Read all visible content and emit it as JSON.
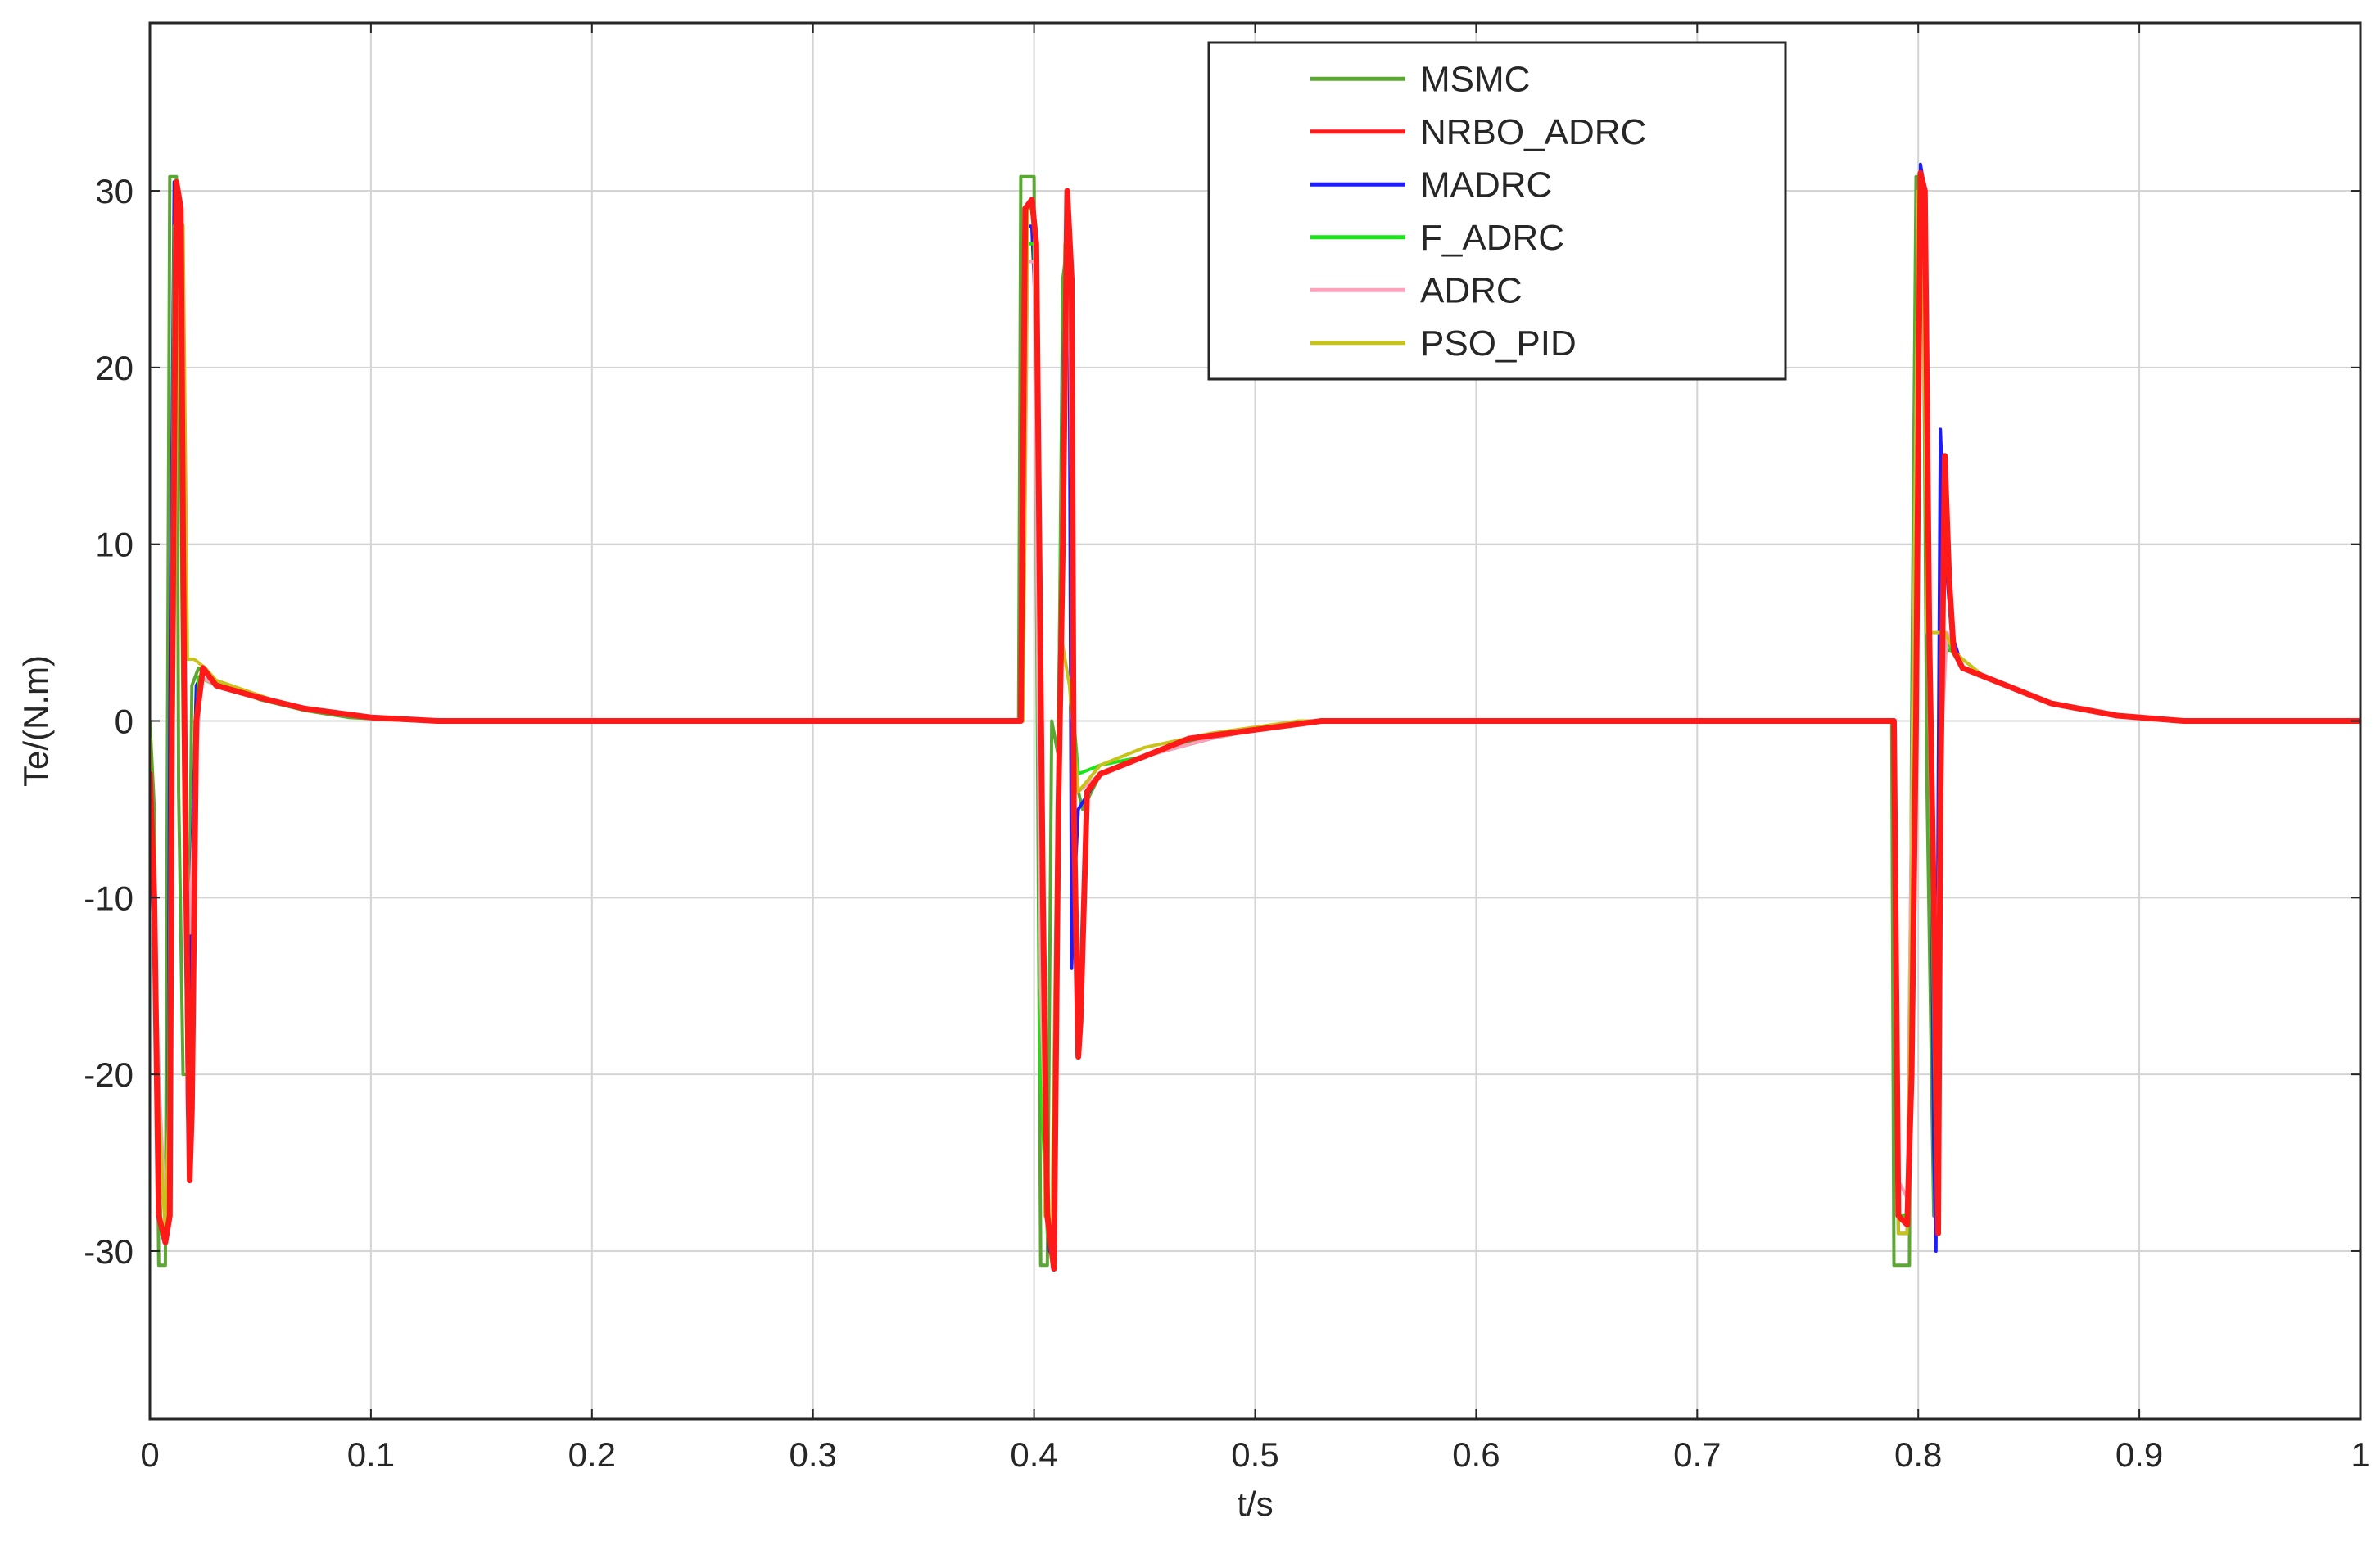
{
  "chart_data": {
    "type": "line",
    "title": "",
    "xlabel": "t/s",
    "ylabel": "Te/(N.m)",
    "xlim": [
      0,
      1
    ],
    "ylim": [
      -39.5,
      39.5
    ],
    "x_ticks": [
      0,
      0.1,
      0.2,
      0.3,
      0.4,
      0.5,
      0.6,
      0.7,
      0.8,
      0.9,
      1
    ],
    "x_tick_labels": [
      "0",
      "0.1",
      "0.2",
      "0.3",
      "0.4",
      "0.5",
      "0.6",
      "0.7",
      "0.8",
      "0.9",
      "1"
    ],
    "y_ticks": [
      -30,
      -20,
      -10,
      0,
      10,
      20,
      30
    ],
    "y_tick_labels": [
      "-30",
      "-20",
      "-10",
      "0",
      "10",
      "20",
      "30"
    ],
    "grid": true,
    "legend_position": "top-center",
    "series": [
      {
        "name": "MSMC",
        "color": "#5aa832",
        "points": [
          [
            0,
            0
          ],
          [
            0.002,
            -5
          ],
          [
            0.004,
            -30.8
          ],
          [
            0.007,
            -30.8
          ],
          [
            0.008,
            0
          ],
          [
            0.009,
            30.8
          ],
          [
            0.012,
            30.8
          ],
          [
            0.013,
            -4
          ],
          [
            0.015,
            -20
          ],
          [
            0.017,
            -20
          ],
          [
            0.019,
            2
          ],
          [
            0.022,
            3
          ],
          [
            0.03,
            2.2
          ],
          [
            0.05,
            1.2
          ],
          [
            0.07,
            0.6
          ],
          [
            0.09,
            0.2
          ],
          [
            0.12,
            0
          ],
          [
            0.393,
            0
          ],
          [
            0.394,
            30.8
          ],
          [
            0.4,
            30.8
          ],
          [
            0.401,
            10
          ],
          [
            0.403,
            -30.8
          ],
          [
            0.406,
            -30.8
          ],
          [
            0.408,
            0
          ],
          [
            0.411,
            -2
          ],
          [
            0.413,
            25
          ],
          [
            0.416,
            28
          ],
          [
            0.418,
            -3
          ],
          [
            0.422,
            -5
          ],
          [
            0.43,
            -3
          ],
          [
            0.45,
            -2
          ],
          [
            0.47,
            -1.2
          ],
          [
            0.5,
            -0.4
          ],
          [
            0.53,
            0
          ],
          [
            0.788,
            0
          ],
          [
            0.789,
            -30.8
          ],
          [
            0.796,
            -30.8
          ],
          [
            0.797,
            0
          ],
          [
            0.799,
            30.8
          ],
          [
            0.802,
            30.8
          ],
          [
            0.804,
            -4
          ],
          [
            0.807,
            -28
          ],
          [
            0.809,
            -26
          ],
          [
            0.811,
            4
          ],
          [
            0.815,
            4
          ],
          [
            0.82,
            3
          ],
          [
            0.83,
            2.5
          ],
          [
            0.86,
            1
          ],
          [
            0.89,
            0.3
          ],
          [
            0.92,
            0
          ],
          [
            1,
            0
          ]
        ]
      },
      {
        "name": "NRBO_ADRC",
        "color": "#ff1a1a",
        "points": [
          [
            0,
            -3
          ],
          [
            0.002,
            -10
          ],
          [
            0.004,
            -28
          ],
          [
            0.007,
            -29.5
          ],
          [
            0.009,
            -28
          ],
          [
            0.01,
            0
          ],
          [
            0.012,
            30.5
          ],
          [
            0.014,
            29
          ],
          [
            0.015,
            10
          ],
          [
            0.016,
            -5
          ],
          [
            0.018,
            -26
          ],
          [
            0.019,
            -22
          ],
          [
            0.021,
            0
          ],
          [
            0.024,
            3
          ],
          [
            0.03,
            2
          ],
          [
            0.05,
            1.3
          ],
          [
            0.07,
            0.7
          ],
          [
            0.1,
            0.2
          ],
          [
            0.13,
            0
          ],
          [
            0.394,
            0
          ],
          [
            0.396,
            29
          ],
          [
            0.399,
            29.5
          ],
          [
            0.401,
            27
          ],
          [
            0.404,
            -10
          ],
          [
            0.406,
            -28
          ],
          [
            0.409,
            -31
          ],
          [
            0.411,
            -5
          ],
          [
            0.413,
            10
          ],
          [
            0.415,
            30
          ],
          [
            0.417,
            25
          ],
          [
            0.418,
            -5
          ],
          [
            0.42,
            -19
          ],
          [
            0.421,
            -17
          ],
          [
            0.424,
            -4
          ],
          [
            0.43,
            -3
          ],
          [
            0.45,
            -2
          ],
          [
            0.47,
            -1
          ],
          [
            0.5,
            -0.5
          ],
          [
            0.53,
            0
          ],
          [
            0.789,
            0
          ],
          [
            0.791,
            -28
          ],
          [
            0.795,
            -28.5
          ],
          [
            0.797,
            -20
          ],
          [
            0.799,
            0
          ],
          [
            0.801,
            31
          ],
          [
            0.803,
            30
          ],
          [
            0.805,
            5
          ],
          [
            0.807,
            -10
          ],
          [
            0.809,
            -29
          ],
          [
            0.81,
            -5
          ],
          [
            0.812,
            15
          ],
          [
            0.814,
            8
          ],
          [
            0.816,
            4
          ],
          [
            0.82,
            3
          ],
          [
            0.83,
            2.5
          ],
          [
            0.86,
            1
          ],
          [
            0.89,
            0.3
          ],
          [
            0.92,
            0
          ],
          [
            1,
            0
          ]
        ]
      },
      {
        "name": "MADRC",
        "color": "#1c1cff",
        "points": [
          [
            0,
            -2
          ],
          [
            0.003,
            -20
          ],
          [
            0.005,
            -29
          ],
          [
            0.008,
            -29
          ],
          [
            0.009,
            0
          ],
          [
            0.011,
            30.5
          ],
          [
            0.013,
            29
          ],
          [
            0.015,
            5
          ],
          [
            0.017,
            -22
          ],
          [
            0.018,
            -25
          ],
          [
            0.019,
            -8
          ],
          [
            0.021,
            2
          ],
          [
            0.025,
            3
          ],
          [
            0.03,
            2
          ],
          [
            0.06,
            1
          ],
          [
            0.09,
            0.3
          ],
          [
            0.12,
            0
          ],
          [
            0.394,
            0
          ],
          [
            0.396,
            28
          ],
          [
            0.399,
            28
          ],
          [
            0.401,
            22
          ],
          [
            0.404,
            -20
          ],
          [
            0.407,
            -30
          ],
          [
            0.409,
            -30
          ],
          [
            0.411,
            -10
          ],
          [
            0.413,
            20
          ],
          [
            0.415,
            30
          ],
          [
            0.416,
            20
          ],
          [
            0.417,
            -14
          ],
          [
            0.418,
            -10
          ],
          [
            0.42,
            -5
          ],
          [
            0.43,
            -3
          ],
          [
            0.45,
            -2
          ],
          [
            0.48,
            -1
          ],
          [
            0.52,
            0
          ],
          [
            0.789,
            0
          ],
          [
            0.791,
            -29
          ],
          [
            0.795,
            -29
          ],
          [
            0.797,
            -8
          ],
          [
            0.799,
            15
          ],
          [
            0.801,
            31.5
          ],
          [
            0.803,
            30
          ],
          [
            0.805,
            8
          ],
          [
            0.807,
            -24
          ],
          [
            0.808,
            -30
          ],
          [
            0.809,
            -5
          ],
          [
            0.81,
            16.5
          ],
          [
            0.812,
            10
          ],
          [
            0.815,
            5
          ],
          [
            0.82,
            3
          ],
          [
            0.83,
            2.5
          ],
          [
            0.86,
            1
          ],
          [
            0.89,
            0.3
          ],
          [
            0.92,
            0
          ],
          [
            1,
            0
          ]
        ]
      },
      {
        "name": "F_ADRC",
        "color": "#19e619",
        "points": [
          [
            0,
            -1
          ],
          [
            0.003,
            -18
          ],
          [
            0.005,
            -29
          ],
          [
            0.008,
            -29
          ],
          [
            0.009,
            -10
          ],
          [
            0.011,
            28
          ],
          [
            0.013,
            29
          ],
          [
            0.015,
            0
          ],
          [
            0.017,
            -19
          ],
          [
            0.019,
            -19
          ],
          [
            0.02,
            -5
          ],
          [
            0.022,
            2.5
          ],
          [
            0.03,
            2
          ],
          [
            0.06,
            1
          ],
          [
            0.09,
            0.3
          ],
          [
            0.12,
            0
          ],
          [
            0.395,
            0
          ],
          [
            0.397,
            27
          ],
          [
            0.4,
            27
          ],
          [
            0.403,
            -20
          ],
          [
            0.406,
            -29
          ],
          [
            0.409,
            -29
          ],
          [
            0.411,
            0
          ],
          [
            0.414,
            27
          ],
          [
            0.416,
            26
          ],
          [
            0.418,
            0
          ],
          [
            0.42,
            -3
          ],
          [
            0.43,
            -2.5
          ],
          [
            0.45,
            -2
          ],
          [
            0.48,
            -1
          ],
          [
            0.52,
            0
          ],
          [
            0.789,
            0
          ],
          [
            0.791,
            -28
          ],
          [
            0.795,
            -28
          ],
          [
            0.797,
            -5
          ],
          [
            0.8,
            29
          ],
          [
            0.802,
            29
          ],
          [
            0.805,
            0
          ],
          [
            0.808,
            -25
          ],
          [
            0.81,
            0
          ],
          [
            0.812,
            5
          ],
          [
            0.815,
            4
          ],
          [
            0.82,
            3
          ],
          [
            0.83,
            2.5
          ],
          [
            0.86,
            1
          ],
          [
            0.89,
            0.3
          ],
          [
            0.92,
            0
          ],
          [
            1,
            0
          ]
        ]
      },
      {
        "name": "ADRC",
        "color": "#ffa0bb",
        "points": [
          [
            0,
            -1
          ],
          [
            0.004,
            -20
          ],
          [
            0.007,
            -28
          ],
          [
            0.009,
            -25
          ],
          [
            0.01,
            0
          ],
          [
            0.012,
            27
          ],
          [
            0.014,
            27
          ],
          [
            0.016,
            -5
          ],
          [
            0.018,
            -12
          ],
          [
            0.02,
            -5
          ],
          [
            0.023,
            2.5
          ],
          [
            0.03,
            2
          ],
          [
            0.06,
            1
          ],
          [
            0.09,
            0.3
          ],
          [
            0.12,
            0
          ],
          [
            0.395,
            0
          ],
          [
            0.397,
            26
          ],
          [
            0.4,
            26
          ],
          [
            0.403,
            -15
          ],
          [
            0.406,
            -28
          ],
          [
            0.409,
            -28
          ],
          [
            0.411,
            -3
          ],
          [
            0.414,
            24
          ],
          [
            0.416,
            24
          ],
          [
            0.418,
            -2
          ],
          [
            0.42,
            -4
          ],
          [
            0.43,
            -3
          ],
          [
            0.45,
            -2
          ],
          [
            0.48,
            -1
          ],
          [
            0.52,
            0
          ],
          [
            0.789,
            0
          ],
          [
            0.791,
            -26
          ],
          [
            0.795,
            -27
          ],
          [
            0.797,
            -5
          ],
          [
            0.8,
            28
          ],
          [
            0.802,
            28
          ],
          [
            0.805,
            0
          ],
          [
            0.808,
            -20
          ],
          [
            0.81,
            -2
          ],
          [
            0.813,
            5
          ],
          [
            0.816,
            4
          ],
          [
            0.82,
            3
          ],
          [
            0.83,
            2.5
          ],
          [
            0.86,
            1
          ],
          [
            0.89,
            0.3
          ],
          [
            0.92,
            0
          ],
          [
            1,
            0
          ]
        ]
      },
      {
        "name": "PSO_PID",
        "color": "#c8c219",
        "points": [
          [
            0,
            -1
          ],
          [
            0.004,
            -22
          ],
          [
            0.007,
            -29
          ],
          [
            0.009,
            -20
          ],
          [
            0.011,
            5
          ],
          [
            0.013,
            29
          ],
          [
            0.015,
            28
          ],
          [
            0.017,
            3.5
          ],
          [
            0.02,
            3.5
          ],
          [
            0.025,
            3
          ],
          [
            0.03,
            2.3
          ],
          [
            0.06,
            1
          ],
          [
            0.09,
            0.3
          ],
          [
            0.12,
            0
          ],
          [
            0.395,
            0
          ],
          [
            0.397,
            29
          ],
          [
            0.4,
            29
          ],
          [
            0.402,
            10
          ],
          [
            0.405,
            -28
          ],
          [
            0.408,
            -29
          ],
          [
            0.41,
            -10
          ],
          [
            0.412,
            5
          ],
          [
            0.416,
            2
          ],
          [
            0.42,
            -4
          ],
          [
            0.43,
            -2.5
          ],
          [
            0.45,
            -1.5
          ],
          [
            0.48,
            -0.7
          ],
          [
            0.52,
            0
          ],
          [
            0.789,
            0
          ],
          [
            0.791,
            -29
          ],
          [
            0.795,
            -29
          ],
          [
            0.797,
            -10
          ],
          [
            0.8,
            30
          ],
          [
            0.802,
            30
          ],
          [
            0.804,
            5
          ],
          [
            0.808,
            5
          ],
          [
            0.812,
            5
          ],
          [
            0.816,
            4
          ],
          [
            0.82,
            3.5
          ],
          [
            0.83,
            2.5
          ],
          [
            0.86,
            1
          ],
          [
            0.89,
            0.3
          ],
          [
            0.92,
            0
          ],
          [
            1,
            0
          ]
        ]
      }
    ]
  }
}
